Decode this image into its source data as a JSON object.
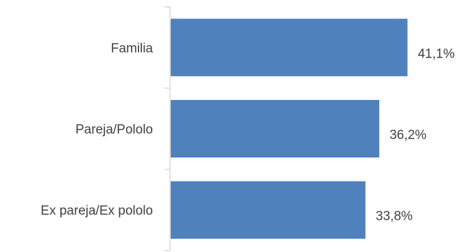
{
  "chart_data": {
    "type": "bar",
    "orientation": "horizontal",
    "categories": [
      "Familia",
      "Pareja/Pololo",
      "Ex pareja/Ex pololo"
    ],
    "values": [
      41.1,
      36.2,
      33.8
    ],
    "value_labels": [
      "41,1%",
      "36,2%",
      "33,8%"
    ],
    "xlim": [
      0,
      50
    ],
    "title": "",
    "xlabel": "",
    "ylabel": "",
    "grid": false,
    "legend": "none",
    "bar_color": "#4F81BD",
    "axis_color": "#D9D9D9",
    "text_color": "#404040"
  }
}
